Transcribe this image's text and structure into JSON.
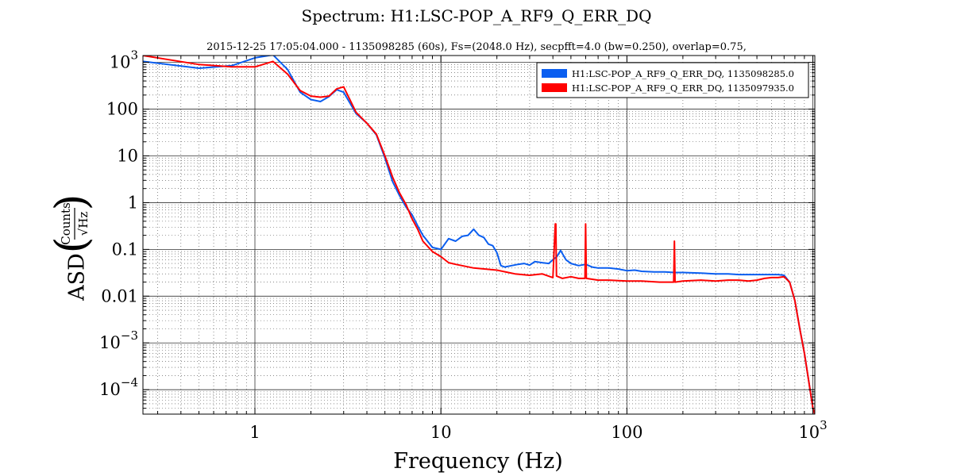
{
  "chart_data": {
    "type": "line",
    "title": "Spectrum: H1:LSC-POP_A_RF9_Q_ERR_DQ",
    "subtitle": "2015-12-25  17:05:04.000 - 1135098285  (60s),  Fs=(2048.0 Hz),  secpfft=4.0  (bw=0.250),  overlap=0.75,",
    "xlabel": "Frequency (Hz)",
    "ylabel": {
      "prefix": "ASD",
      "numerator": "Counts",
      "denominator": "√Hz"
    },
    "x_scale": "log",
    "y_scale": "log",
    "xlim": [
      0.25,
      1024
    ],
    "ylim": [
      3e-05,
      1400
    ],
    "grid": true,
    "legend_position": "top-right",
    "x_tick_labels": [
      {
        "value": 1,
        "label": "1"
      },
      {
        "value": 10,
        "label": "10"
      },
      {
        "value": 100,
        "label": "100"
      },
      {
        "value": 1000,
        "label": "10",
        "exp": "3"
      }
    ],
    "y_tick_labels": [
      {
        "value": 1000,
        "label": "10",
        "exp": "3"
      },
      {
        "value": 100,
        "label": "100"
      },
      {
        "value": 10,
        "label": "10"
      },
      {
        "value": 1,
        "label": "1"
      },
      {
        "value": 0.1,
        "label": "0.1"
      },
      {
        "value": 0.01,
        "label": "0.01"
      },
      {
        "value": 0.001,
        "label": "10",
        "exp": "−3"
      },
      {
        "value": 0.0001,
        "label": "10",
        "exp": "−4"
      }
    ],
    "series": [
      {
        "name": "H1:LSC-POP_A_RF9_Q_ERR_DQ, 1135098285.0",
        "color": "#0a5ef0",
        "x": [
          0.25,
          0.5,
          0.75,
          1.0,
          1.25,
          1.5,
          1.75,
          2.0,
          2.25,
          2.5,
          2.75,
          3.0,
          3.5,
          4.0,
          4.5,
          5.0,
          5.5,
          6.0,
          6.5,
          7.0,
          7.5,
          8.0,
          9.0,
          10,
          11,
          12,
          13,
          14,
          15,
          16,
          17,
          18,
          19,
          20,
          21,
          22,
          24,
          26,
          28,
          30,
          32,
          35,
          38,
          40,
          42,
          44,
          47,
          50,
          55,
          60,
          65,
          70,
          80,
          90,
          100,
          110,
          120,
          140,
          160,
          180,
          200,
          250,
          300,
          350,
          400,
          450,
          500,
          550,
          600,
          650,
          700,
          750,
          800,
          850,
          900,
          950,
          1000,
          1024
        ],
        "y": [
          1050,
          750,
          850,
          1250,
          1450,
          700,
          230,
          160,
          145,
          185,
          260,
          230,
          80,
          50,
          28,
          9,
          2.8,
          1.4,
          0.8,
          0.55,
          0.32,
          0.2,
          0.11,
          0.1,
          0.17,
          0.15,
          0.19,
          0.2,
          0.27,
          0.2,
          0.18,
          0.13,
          0.12,
          0.085,
          0.045,
          0.042,
          0.045,
          0.048,
          0.05,
          0.046,
          0.055,
          0.052,
          0.05,
          0.06,
          0.07,
          0.095,
          0.06,
          0.05,
          0.045,
          0.048,
          0.042,
          0.04,
          0.04,
          0.038,
          0.035,
          0.036,
          0.034,
          0.033,
          0.033,
          0.032,
          0.032,
          0.031,
          0.03,
          0.03,
          0.029,
          0.029,
          0.029,
          0.029,
          0.029,
          0.029,
          0.028,
          0.02,
          0.008,
          0.002,
          0.0006,
          0.00015,
          4e-05,
          3e-05
        ]
      },
      {
        "name": "H1:LSC-POP_A_RF9_Q_ERR_DQ, 1135097935.0",
        "color": "#ff0000",
        "x": [
          0.25,
          0.5,
          0.75,
          1.0,
          1.25,
          1.5,
          1.75,
          2.0,
          2.25,
          2.5,
          2.75,
          3.0,
          3.5,
          4.0,
          4.5,
          5.0,
          5.5,
          6.0,
          6.5,
          7.0,
          7.5,
          8.0,
          9.0,
          10,
          11,
          12,
          15,
          20,
          25,
          30,
          35,
          40,
          41.2,
          41.5,
          41.8,
          45,
          50,
          55,
          59.5,
          60,
          60.5,
          70,
          80,
          100,
          120,
          150,
          178.5,
          180,
          181.5,
          200,
          250,
          300,
          350,
          400,
          450,
          500,
          550,
          600,
          650,
          700,
          750,
          800,
          850,
          900,
          950,
          1000,
          1024
        ],
        "y": [
          1400,
          900,
          800,
          800,
          1050,
          560,
          250,
          190,
          180,
          190,
          270,
          300,
          85,
          50,
          29,
          10,
          3.5,
          1.6,
          0.9,
          0.45,
          0.27,
          0.15,
          0.09,
          0.07,
          0.052,
          0.048,
          0.04,
          0.036,
          0.03,
          0.028,
          0.03,
          0.025,
          0.35,
          0.35,
          0.027,
          0.024,
          0.026,
          0.024,
          0.024,
          0.35,
          0.024,
          0.022,
          0.022,
          0.021,
          0.021,
          0.02,
          0.02,
          0.15,
          0.02,
          0.021,
          0.022,
          0.021,
          0.022,
          0.022,
          0.021,
          0.022,
          0.024,
          0.025,
          0.025,
          0.026,
          0.02,
          0.008,
          0.002,
          0.0006,
          0.00015,
          4e-05,
          3e-05
        ]
      }
    ]
  }
}
